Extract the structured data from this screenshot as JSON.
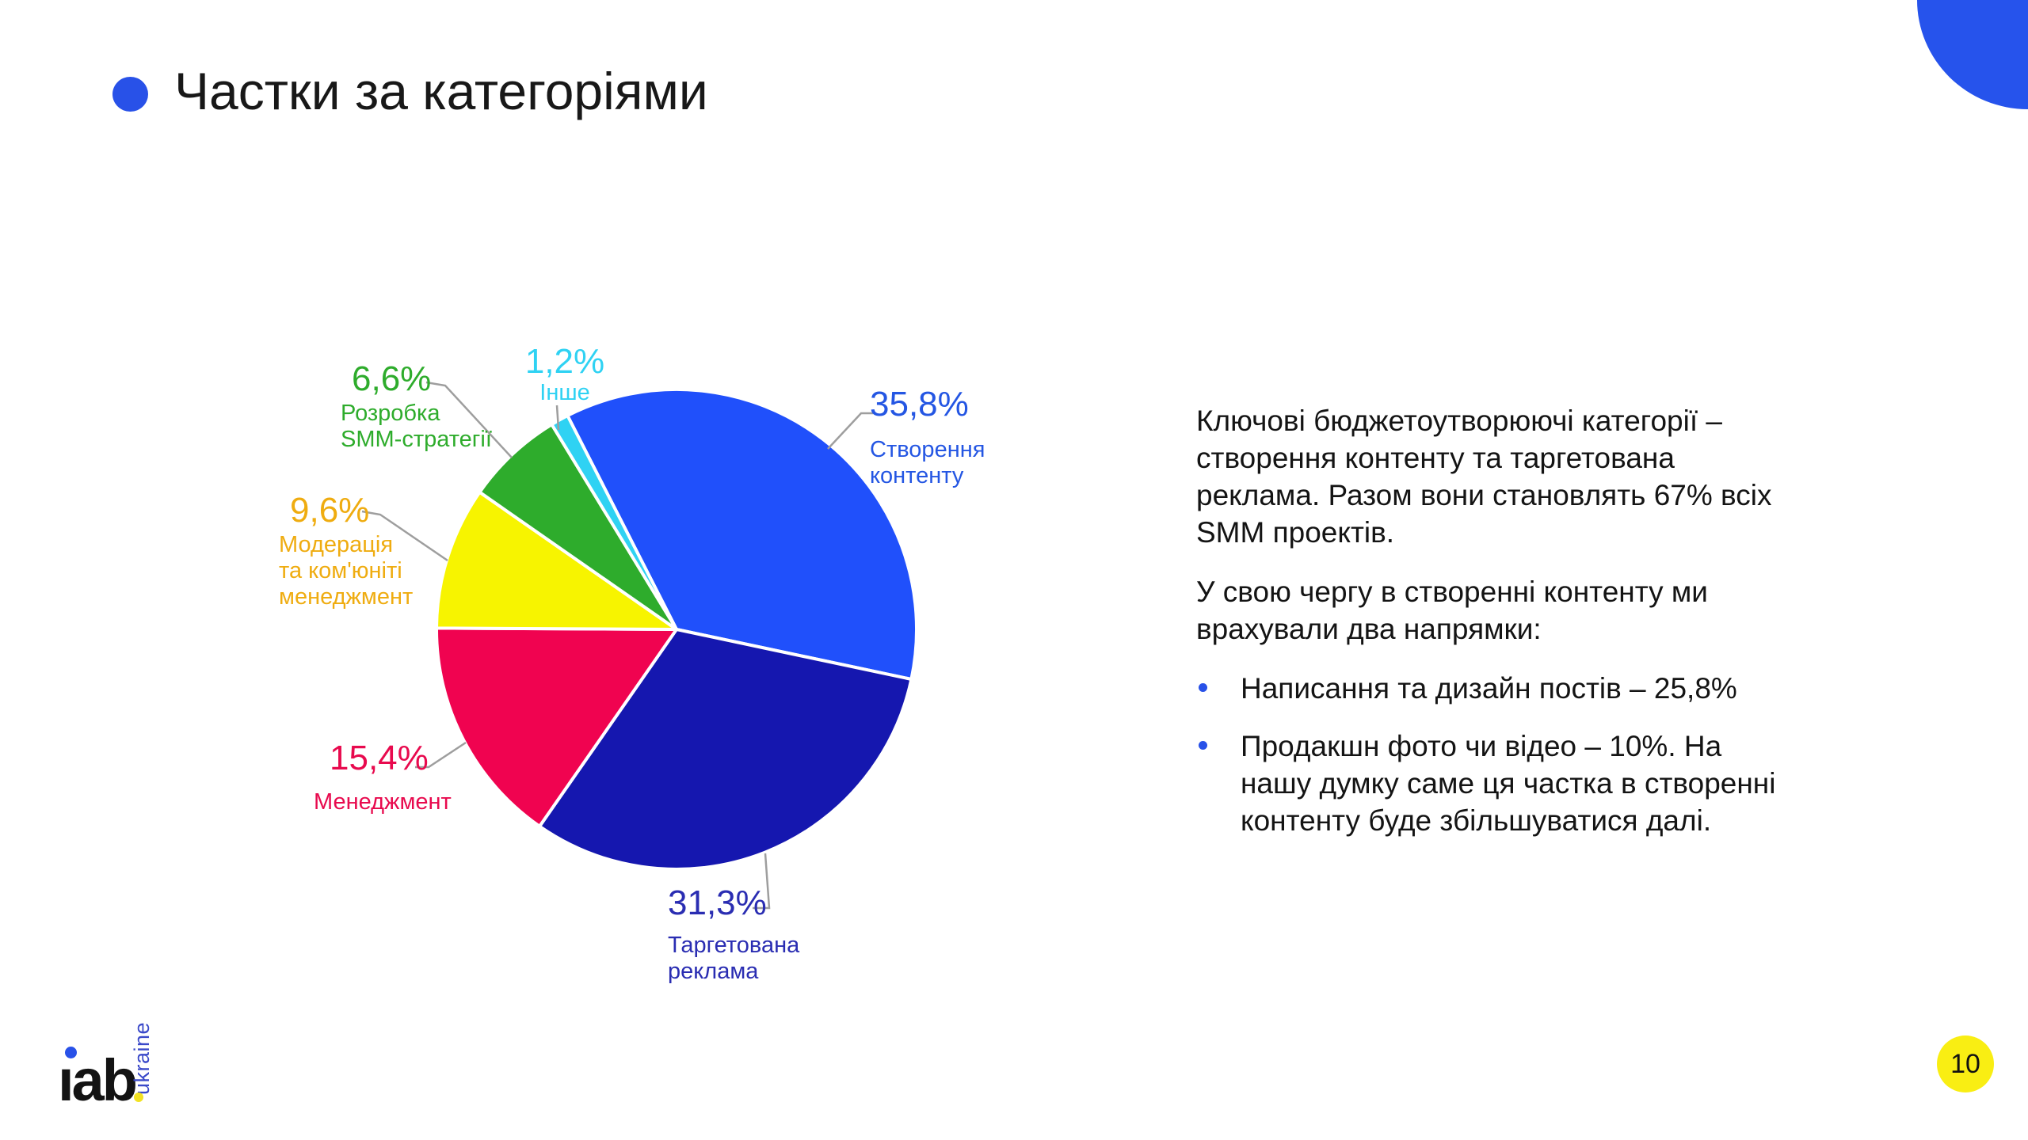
{
  "slide": {
    "title": "Частки за категоріями",
    "page_number": "10",
    "logo": {
      "text": "iab",
      "sub": "ukraine"
    },
    "accent_blue": "#2851e8",
    "badge_yellow": "#f9ee13"
  },
  "chart_data": {
    "type": "pie",
    "title": "Частки за категоріями",
    "legend": "none",
    "labels_position": "outside",
    "start_angle_deg": -27,
    "slices": [
      {
        "label": "Створення\nконтенту",
        "value": 35.8,
        "pct_label": "35,8%",
        "color": "#2050fb",
        "label_color": "#2456e3"
      },
      {
        "label": "Таргетована\nреклама",
        "value": 31.3,
        "pct_label": "31,3%",
        "color": "#1517af",
        "label_color": "#2a2db2"
      },
      {
        "label": "Менеджмент",
        "value": 15.4,
        "pct_label": "15,4%",
        "color": "#f00350",
        "label_color": "#e80a4e"
      },
      {
        "label": "Модерація\nта ком'юніті\nменеджмент",
        "value": 9.6,
        "pct_label": "9,6%",
        "color": "#f7f400",
        "label_color": "#efac10"
      },
      {
        "label": "Розробка\nSMM-стратегії",
        "value": 6.6,
        "pct_label": "6,6%",
        "color": "#2eac2c",
        "label_color": "#2eac2c"
      },
      {
        "label": "Інше",
        "value": 1.2,
        "pct_label": "1,2%",
        "color": "#2fd2f3",
        "label_color": "#2fd2f3"
      }
    ]
  },
  "body": {
    "paragraphs": [
      "Ключові бюджетоутворюючі категорії –\nстворення контенту та таргетована\nреклама. Разом вони становлять 67% всіх\nSMM проектів.",
      "У свою чергу в створенні контенту ми\nврахували два напрямки:"
    ],
    "bullets": [
      "Написання та дизайн постів – 25,8%",
      "Продакшн фото чи відео – 10%. На\nнашу думку саме ця частка в створенні\nконтенту буде збільшуватися далі."
    ]
  }
}
